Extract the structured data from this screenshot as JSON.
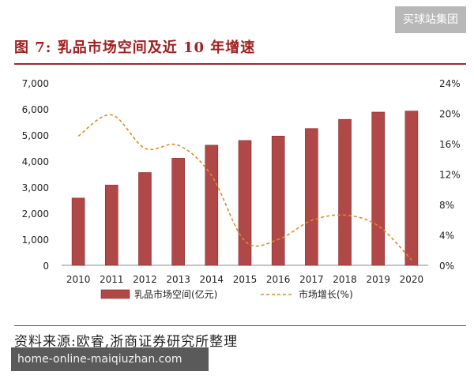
{
  "watermark": "买球站集团",
  "figure_title": "图 7:  乳品市场空间及近 10 年增速",
  "source": "资料来源:欧睿,浙商证券研究所整理",
  "url_banner": "home-online-maiqiuzhan.com",
  "colors": {
    "bar": "#b04848",
    "bar_stroke": "#8a2a2a",
    "line": "#e08a2a",
    "title": "#a02020"
  },
  "chart_data": {
    "type": "bar",
    "categories": [
      "2010",
      "2011",
      "2012",
      "2013",
      "2014",
      "2015",
      "2016",
      "2017",
      "2018",
      "2019",
      "2020"
    ],
    "series": [
      {
        "name": "乳品市场空间(亿元)",
        "type": "bar",
        "axis": "left",
        "values": [
          2580,
          3080,
          3560,
          4110,
          4610,
          4790,
          4960,
          5250,
          5600,
          5880,
          5920
        ]
      },
      {
        "name": "市场增长(%)",
        "type": "line",
        "axis": "right",
        "style": "dashed",
        "values": [
          17.0,
          19.8,
          15.4,
          15.8,
          11.8,
          3.2,
          3.4,
          5.9,
          6.6,
          5.2,
          0.7
        ]
      }
    ],
    "y_left": {
      "min": 0,
      "max": 7000,
      "ticks": [
        0,
        1000,
        2000,
        3000,
        4000,
        5000,
        6000,
        7000
      ],
      "tick_labels": [
        "0",
        "1,000",
        "2,000",
        "3,000",
        "4,000",
        "5,000",
        "6,000",
        "7,000"
      ]
    },
    "y_right": {
      "min": 0,
      "max": 24,
      "ticks": [
        0,
        4,
        8,
        12,
        16,
        20,
        24
      ],
      "tick_labels": [
        "0%",
        "4%",
        "8%",
        "12%",
        "16%",
        "20%",
        "24%"
      ]
    },
    "grid": false,
    "legend_position": "bottom"
  }
}
